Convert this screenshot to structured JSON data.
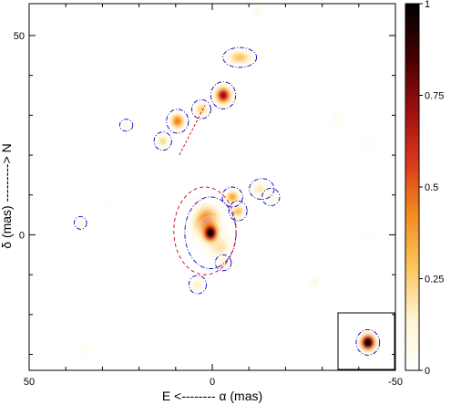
{
  "chart_data": {
    "type": "heatmap",
    "title": "",
    "xlabel": "E <-------- α (mas)",
    "ylabel": "δ (mas) ---------> N",
    "xlim": [
      50,
      -50
    ],
    "ylim": [
      -34,
      58
    ],
    "x_ticks": [
      50,
      0,
      -50
    ],
    "y_ticks": [
      50,
      0
    ],
    "colorbar": {
      "range": [
        0,
        1
      ],
      "ticks": [
        0,
        0.25,
        0.5,
        0.75,
        1
      ],
      "tick_labels": [
        "0",
        "0.25",
        "0.5",
        "0.75",
        "1"
      ],
      "colormap": [
        "#ffffff",
        "#fff3d0",
        "#fdc35a",
        "#f28a1e",
        "#d9361b",
        "#9a0f0f",
        "#420000",
        "#000000"
      ]
    },
    "sources": [
      {
        "x": 0.5,
        "y": 0.5,
        "sx": 1.6,
        "sy": 1.8,
        "peak": 1.0
      },
      {
        "x": 1.5,
        "y": 3.0,
        "sx": 2.8,
        "sy": 3.3,
        "peak": 0.55
      },
      {
        "x": -1.5,
        "y": -2.5,
        "sx": 2.5,
        "sy": 2.2,
        "peak": 0.3
      },
      {
        "x": -7.0,
        "y": 6.0,
        "sx": 1.5,
        "sy": 1.5,
        "peak": 0.3
      },
      {
        "x": -5.5,
        "y": 9.5,
        "sx": 1.6,
        "sy": 1.4,
        "peak": 0.35
      },
      {
        "x": -3.0,
        "y": -7.0,
        "sx": 1.6,
        "sy": 1.4,
        "peak": 0.18
      },
      {
        "x": 4.0,
        "y": -12.5,
        "sx": 1.4,
        "sy": 1.3,
        "peak": 0.15
      },
      {
        "x": -13.0,
        "y": 11.5,
        "sx": 1.8,
        "sy": 1.5,
        "peak": 0.18
      },
      {
        "x": -16.0,
        "y": 9.5,
        "sx": 1.5,
        "sy": 1.4,
        "peak": 0.12
      },
      {
        "x": -3.0,
        "y": 35.0,
        "sx": 1.7,
        "sy": 1.7,
        "peak": 0.72
      },
      {
        "x": 9.5,
        "y": 28.5,
        "sx": 1.6,
        "sy": 1.6,
        "peak": 0.45
      },
      {
        "x": 3.0,
        "y": 31.5,
        "sx": 1.5,
        "sy": 1.4,
        "peak": 0.25
      },
      {
        "x": 13.5,
        "y": 23.5,
        "sx": 1.4,
        "sy": 1.3,
        "peak": 0.22
      },
      {
        "x": -7.5,
        "y": 44.5,
        "sx": 2.8,
        "sy": 1.5,
        "peak": 0.28
      },
      {
        "x": 23.5,
        "y": 27.5,
        "sx": 1.1,
        "sy": 1.0,
        "peak": 0.08
      },
      {
        "x": 36.0,
        "y": 3.0,
        "sx": 1.1,
        "sy": 1.0,
        "peak": 0.1
      },
      {
        "x": -12.5,
        "y": 56.0,
        "sx": 1.2,
        "sy": 1.2,
        "peak": 0.06
      },
      {
        "x": -34.0,
        "y": 29.0,
        "sx": 1.3,
        "sy": 1.3,
        "peak": 0.05
      },
      {
        "x": -42.5,
        "y": 23.0,
        "sx": 1.4,
        "sy": 1.3,
        "peak": 0.04
      },
      {
        "x": -28.0,
        "y": -12.0,
        "sx": 1.2,
        "sy": 1.1,
        "peak": 0.08
      },
      {
        "x": 35.0,
        "y": -29.0,
        "sx": 1.4,
        "sy": 1.4,
        "peak": 0.05
      },
      {
        "x": -42.5,
        "y": 0.0,
        "sx": 1.0,
        "sy": 1.0,
        "peak": 0.04
      },
      {
        "x": 28.5,
        "y": 8.5,
        "sx": 0.9,
        "sy": 0.9,
        "peak": 0.03
      }
    ],
    "contours": [
      {
        "x": 0.5,
        "y": 0.5,
        "rx": 7.0,
        "ry": 9.0,
        "color": "#0000cc",
        "style": "dash-dot"
      },
      {
        "x": -3.0,
        "y": 35.0,
        "rx": 3.4,
        "ry": 3.4,
        "color": "#0000cc",
        "style": "dash-dot"
      },
      {
        "x": 9.5,
        "y": 28.5,
        "rx": 3.0,
        "ry": 3.0,
        "color": "#0000cc",
        "style": "dash-dot"
      },
      {
        "x": 3.0,
        "y": 31.5,
        "rx": 2.6,
        "ry": 2.4,
        "color": "#0000cc",
        "style": "dash-dot"
      },
      {
        "x": 13.5,
        "y": 23.5,
        "rx": 2.4,
        "ry": 2.3,
        "color": "#0000cc",
        "style": "dash-dot"
      },
      {
        "x": -7.5,
        "y": 44.5,
        "rx": 4.6,
        "ry": 2.5,
        "color": "#0000cc",
        "style": "dash-dot"
      },
      {
        "x": -5.5,
        "y": 9.5,
        "rx": 2.8,
        "ry": 2.5,
        "color": "#0000cc",
        "style": "dash-dot"
      },
      {
        "x": -7.0,
        "y": 6.0,
        "rx": 2.5,
        "ry": 2.5,
        "color": "#0000cc",
        "style": "dash-dot"
      },
      {
        "x": -13.5,
        "y": 11.5,
        "rx": 3.4,
        "ry": 2.6,
        "color": "#0000cc",
        "style": "dash-dot"
      },
      {
        "x": -16.0,
        "y": 9.5,
        "rx": 2.4,
        "ry": 2.2,
        "color": "#0000cc",
        "style": "dash-dot"
      },
      {
        "x": 4.0,
        "y": -12.5,
        "rx": 2.4,
        "ry": 2.3,
        "color": "#0000cc",
        "style": "dash-dot"
      },
      {
        "x": -3.0,
        "y": -7.0,
        "rx": 2.2,
        "ry": 2.0,
        "color": "#0000cc",
        "style": "dash-dot"
      },
      {
        "x": 23.5,
        "y": 27.5,
        "rx": 1.8,
        "ry": 1.5,
        "color": "#0000cc",
        "style": "dash-dot"
      },
      {
        "x": 36.0,
        "y": 3.0,
        "rx": 1.7,
        "ry": 1.6,
        "color": "#0000cc",
        "style": "dash-dot"
      },
      {
        "x": 2.0,
        "y": 1.0,
        "rx": 8.5,
        "ry": 11.0,
        "color": "#cc0000",
        "style": "dashed"
      }
    ],
    "pa_line": {
      "from": [
        9.0,
        20.0
      ],
      "to": [
        2.0,
        32.5
      ],
      "color": "#cc0000"
    },
    "beam_inset": {
      "x": -42.5,
      "y": -27,
      "sx": 1.6,
      "sy": 1.6,
      "contour_r": 3.2
    }
  }
}
